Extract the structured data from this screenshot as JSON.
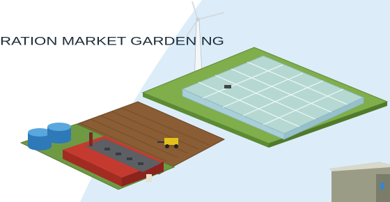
{
  "header": {
    "title": "RATION MARKET GARDENING"
  }
}
